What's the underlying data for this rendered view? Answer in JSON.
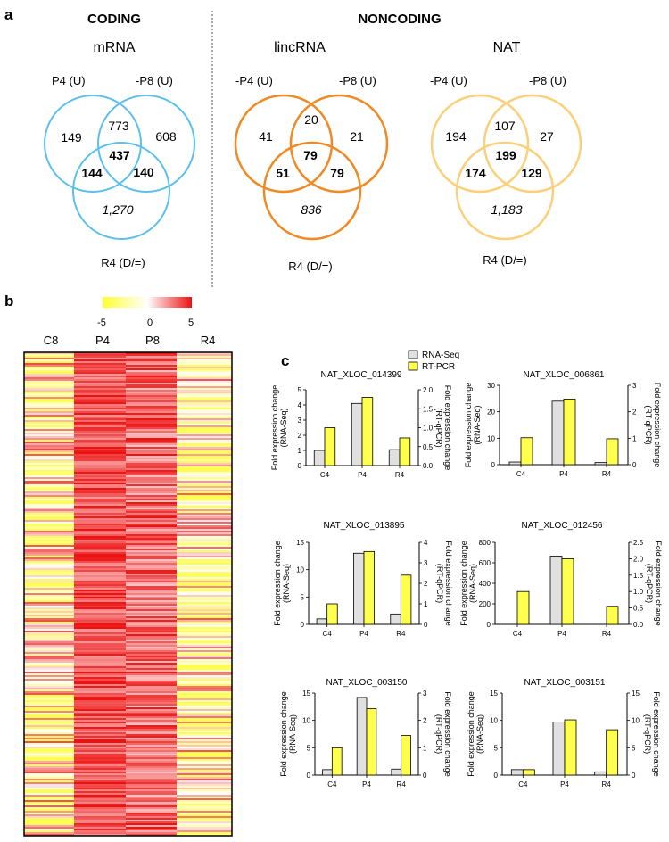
{
  "panel_labels": {
    "a": "a",
    "b": "b",
    "c": "c"
  },
  "section_titles": {
    "coding": "CODING",
    "noncoding": "NONCODING"
  },
  "venns": [
    {
      "title": "mRNA",
      "color": "#5bc0eb",
      "set_labels": [
        "P4 (U)",
        "-P8 (U)",
        "R4 (D/=)"
      ],
      "counts": {
        "a_only": "149",
        "ab": "773",
        "b_only": "608",
        "abc": "437",
        "ac": "144",
        "bc": "140",
        "c_only": "1,270"
      }
    },
    {
      "title": "lincRNA",
      "color": "#f08a24",
      "set_labels": [
        "-P4 (U)",
        "-P8 (U)",
        "R4 (D/=)"
      ],
      "counts": {
        "a_only": "41",
        "ab": "20",
        "b_only": "21",
        "abc": "79",
        "ac": "51",
        "bc": "79",
        "c_only": "836"
      }
    },
    {
      "title": "NAT",
      "color": "#fbd07a",
      "set_labels": [
        "-P4 (U)",
        "-P8 (U)",
        "R4 (D/=)"
      ],
      "counts": {
        "a_only": "194",
        "ab": "107",
        "b_only": "27",
        "abc": "199",
        "ac": "174",
        "bc": "129",
        "c_only": "1,183"
      }
    }
  ],
  "heatmap": {
    "scale_ticks": [
      "-5",
      "0",
      "5"
    ],
    "columns": [
      "C8",
      "P4",
      "P8",
      "R4"
    ],
    "colors": {
      "low": "#ffff33",
      "mid": "#ffffff",
      "high": "#ee1111"
    }
  },
  "legend": {
    "rnaseq": "RNA-Seq",
    "rtpcr": "RT-PCR"
  },
  "colors": {
    "rnaseq": "#e0e0e0",
    "rtpcr": "#ffff4d"
  },
  "chart_data": [
    {
      "type": "bar",
      "title": "NAT_XLOC_014399",
      "categories": [
        "C4",
        "P4",
        "R4"
      ],
      "series": [
        {
          "name": "RNA-Seq",
          "axis": "left",
          "values": [
            1.0,
            4.1,
            1.05
          ]
        },
        {
          "name": "RT-PCR",
          "axis": "right",
          "values": [
            1.0,
            1.8,
            0.73
          ]
        }
      ],
      "ylabel_left": [
        "Fold expression change",
        "(RNA-Seq)"
      ],
      "ylabel_right": [
        "Fold expression change",
        "(RT-qPCR)"
      ],
      "ylim_left": [
        0,
        5
      ],
      "yticks_left": [
        0,
        1,
        2,
        3,
        4,
        5
      ],
      "ylim_right": [
        0,
        2
      ],
      "yticks_right": [
        0,
        0.5,
        1,
        1.5,
        2
      ],
      "yticklabels_right": [
        "0.0",
        "0.5",
        "1.0",
        "1.5",
        "2.0"
      ]
    },
    {
      "type": "bar",
      "title": "NAT_XLOC_006861",
      "categories": [
        "C4",
        "P4",
        "R4"
      ],
      "series": [
        {
          "name": "RNA-Seq",
          "axis": "left",
          "values": [
            1.0,
            24,
            0.8
          ]
        },
        {
          "name": "RT-PCR",
          "axis": "right",
          "values": [
            1.02,
            2.48,
            0.98
          ]
        }
      ],
      "ylabel_left": [
        "Fold expression change",
        "(RNA-Seq)"
      ],
      "ylabel_right": [
        "Fold expression change",
        "(RT-qPCR)"
      ],
      "ylim_left": [
        0,
        30
      ],
      "yticks_left": [
        0,
        10,
        20,
        30
      ],
      "ylim_right": [
        0,
        3
      ],
      "yticks_right": [
        0,
        1,
        2,
        3
      ]
    },
    {
      "type": "bar",
      "title": "NAT_XLOC_013895",
      "categories": [
        "C4",
        "P4",
        "R4"
      ],
      "series": [
        {
          "name": "RNA-Seq",
          "axis": "left",
          "values": [
            1.0,
            13,
            1.9
          ]
        },
        {
          "name": "RT-PCR",
          "axis": "right",
          "values": [
            1.0,
            3.55,
            2.4
          ]
        }
      ],
      "ylabel_left": [
        "Fold expression change",
        "(RNA-Seq)"
      ],
      "ylabel_right": [
        "Fold expression change",
        "(RT-qPCR)"
      ],
      "ylim_left": [
        0,
        15
      ],
      "yticks_left": [
        0,
        5,
        10,
        15
      ],
      "ylim_right": [
        0,
        4
      ],
      "yticks_right": [
        0,
        1,
        2,
        3,
        4
      ]
    },
    {
      "type": "bar",
      "title": "NAT_XLOC_012456",
      "categories": [
        "C4",
        "P4",
        "R4"
      ],
      "series": [
        {
          "name": "RNA-Seq",
          "axis": "left",
          "values": [
            0,
            665,
            0
          ]
        },
        {
          "name": "RT-PCR",
          "axis": "right",
          "values": [
            1.0,
            2.0,
            0.55
          ]
        }
      ],
      "ylabel_left": [
        "Fold expression change",
        "(RNA-Seq)"
      ],
      "ylabel_right": [
        "Fold expression change",
        "(RT-qPCR)"
      ],
      "ylim_left": [
        0,
        800
      ],
      "yticks_left": [
        0,
        200,
        400,
        600,
        800
      ],
      "ylim_right": [
        0,
        2.5
      ],
      "yticks_right": [
        0,
        0.5,
        1,
        1.5,
        2,
        2.5
      ],
      "yticklabels_right": [
        "0.0",
        "0.5",
        "1.0",
        "1.5",
        "2.0",
        "2.5"
      ]
    },
    {
      "type": "bar",
      "title": "NAT_XLOC_003150",
      "categories": [
        "C4",
        "P4",
        "R4"
      ],
      "series": [
        {
          "name": "RNA-Seq",
          "axis": "left",
          "values": [
            1.0,
            14.2,
            1.1
          ]
        },
        {
          "name": "RT-PCR",
          "axis": "right",
          "values": [
            1.0,
            2.43,
            1.45
          ]
        }
      ],
      "ylabel_left": [
        "Fold expression change",
        "(RNA-Seq)"
      ],
      "ylabel_right": [
        "Fold expression change",
        "(RT-qPCR)"
      ],
      "ylim_left": [
        0,
        15
      ],
      "yticks_left": [
        0,
        5,
        10,
        15
      ],
      "ylim_right": [
        0,
        3
      ],
      "yticks_right": [
        0,
        1,
        2,
        3
      ]
    },
    {
      "type": "bar",
      "title": "NAT_XLOC_003151",
      "categories": [
        "C4",
        "P4",
        "R4"
      ],
      "series": [
        {
          "name": "RNA-Seq",
          "axis": "left",
          "values": [
            1.0,
            9.7,
            0.6
          ]
        },
        {
          "name": "RT-PCR",
          "axis": "right",
          "values": [
            1.0,
            10.1,
            8.3
          ]
        }
      ],
      "ylabel_left": [
        "Fold expression change",
        "(RNA-Seq)"
      ],
      "ylabel_right": [
        "Fold expression change",
        "(RT-qPCR)"
      ],
      "ylim_left": [
        0,
        15
      ],
      "yticks_left": [
        0,
        5,
        10,
        15
      ],
      "ylim_right": [
        0,
        15
      ],
      "yticks_right": [
        0,
        5,
        10,
        15
      ]
    }
  ]
}
